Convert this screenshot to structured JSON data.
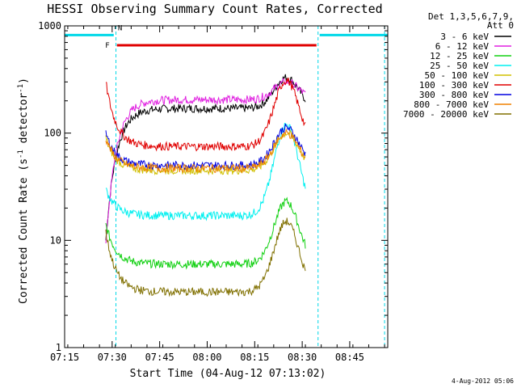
{
  "chart_data": {
    "type": "line",
    "title": "HESSI Observing Summary Count Rates, Corrected",
    "xlabel": "Start Time (04-Aug-12 07:13:02)",
    "ylabel": "Corrected Count Rate (s",
    "ylabel_sup": "-1",
    "ylabel_tail": " detector",
    "ylabel_close": ")",
    "y_scale": "log",
    "ylim": [
      1,
      1000
    ],
    "y_ticks": [
      "1",
      "10",
      "100",
      "1000"
    ],
    "x_ticks": [
      "07:15",
      "07:30",
      "07:45",
      "08:00",
      "08:15",
      "08:30",
      "08:45"
    ],
    "x_range_minutes": [
      7.0,
      109.0
    ],
    "x_start_clock": "07:08",
    "legend_header": [
      "Det 1,3,5,6,7,9,",
      "Att 0"
    ],
    "legend_placement": "right-outside",
    "series": [
      {
        "name": "3 - 6 keV",
        "color": "#000000",
        "start": 20,
        "end": 83,
        "base": 170,
        "peak": 330,
        "edge": 10
      },
      {
        "name": "6 - 12 keV",
        "color": "#e020e0",
        "start": 20,
        "end": 83,
        "base": 205,
        "peak": 300,
        "edge": 9
      },
      {
        "name": "12 - 25 keV",
        "color": "#10d010",
        "start": 20,
        "end": 83,
        "base": 6,
        "peak": 23,
        "edge": 14
      },
      {
        "name": "25 - 50 keV",
        "color": "#00f0f0",
        "start": 20,
        "end": 83,
        "base": 17,
        "peak": 120,
        "edge": 30
      },
      {
        "name": "50 - 100 keV",
        "color": "#d0c000",
        "start": 20,
        "end": 83,
        "base": 45,
        "peak": 100,
        "edge": 90
      },
      {
        "name": "100 - 300 keV",
        "color": "#e00000",
        "start": 20,
        "end": 83,
        "base": 75,
        "peak": 310,
        "edge": 300
      },
      {
        "name": "300 - 800 keV",
        "color": "#0000e0",
        "start": 20,
        "end": 83,
        "base": 50,
        "peak": 112,
        "edge": 100
      },
      {
        "name": "800 - 7000 keV",
        "color": "#f08000",
        "start": 20,
        "end": 83,
        "base": 47,
        "peak": 100,
        "edge": 90
      },
      {
        "name": "7000 - 20000 keV",
        "color": "#807000",
        "start": 20,
        "end": 83,
        "base": 3.3,
        "peak": 15,
        "edge": 12
      }
    ],
    "annotations": {
      "flare_label": "F",
      "night_label": "N",
      "flare_bar_color": "#e00000",
      "saa_bar_color": "#00d8e8",
      "flare_interval": [
        23.5,
        86.5
      ],
      "day_intervals": [
        [
          7.0,
          22.5
        ],
        [
          87.5,
          109.0
        ]
      ],
      "dashed_markers": [
        23.2,
        87.0,
        108.0
      ]
    },
    "grid": false
  },
  "footer": "4-Aug-2012 05:06"
}
